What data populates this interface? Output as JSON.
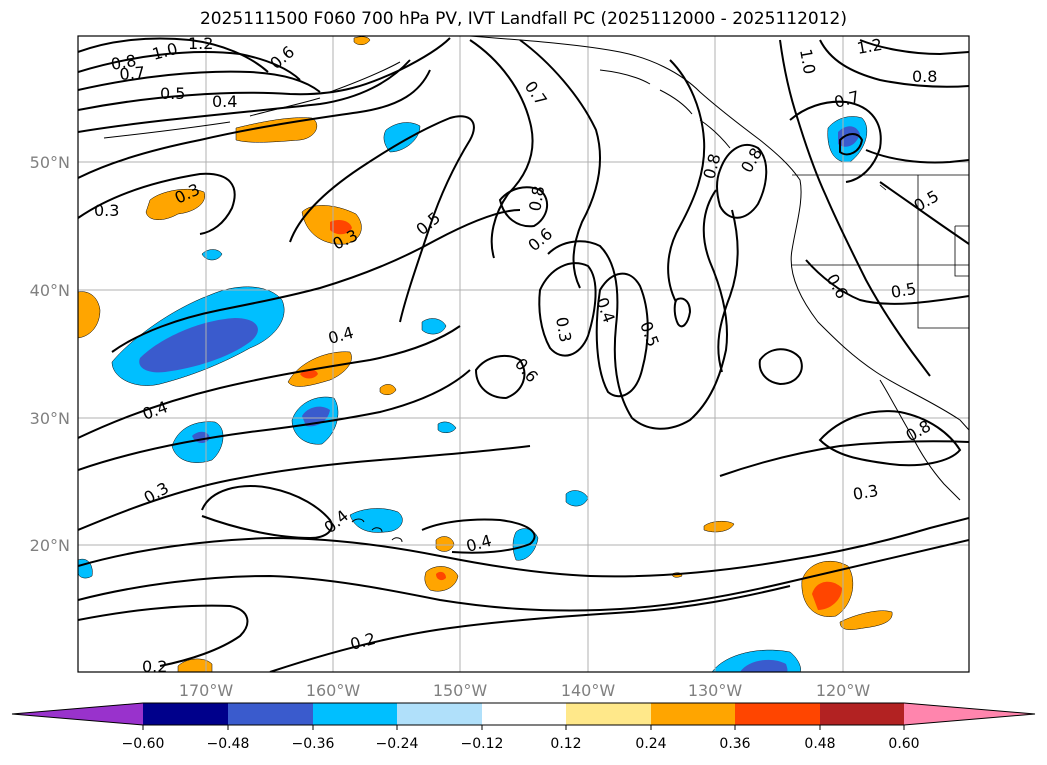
{
  "title": "2025111500 F060 700 hPa PV, IVT Landfall PC (2025112000 - 2025112012)",
  "lat_labels": [
    "50°N",
    "40°N",
    "30°N",
    "20°N"
  ],
  "lon_labels": [
    "170°W",
    "160°W",
    "150°W",
    "140°W",
    "130°W",
    "120°W"
  ],
  "colorbar": {
    "ticks": [
      "−0.60",
      "−0.48",
      "−0.36",
      "−0.24",
      "−0.12",
      "0.12",
      "0.24",
      "0.36",
      "0.48",
      "0.60"
    ],
    "colors": [
      "#9932cc",
      "#00008b",
      "#3a5bcd",
      "#00bfff",
      "#b0e0fa",
      "#ffffff",
      "#ffe88a",
      "#ffa500",
      "#ff4500",
      "#b22222",
      "#ff85ad"
    ]
  },
  "contour_labels": [
    "1.2",
    "1.0",
    "0.8",
    "0.7",
    "0.6",
    "0.5",
    "0.4",
    "0.3",
    "0.3",
    "0.4",
    "0.3",
    "0.4",
    "0.3",
    "0.5",
    "0.7",
    "0.8",
    "0.6",
    "0.3",
    "0.4",
    "0.5",
    "0.6",
    "0.4",
    "0.4",
    "0.2",
    "0.2",
    "0.8",
    "0.7",
    "1.0",
    "1.2",
    "0.8",
    "0.8",
    "0.6",
    "0.5",
    "0.5",
    "0.8",
    "0.3"
  ]
}
